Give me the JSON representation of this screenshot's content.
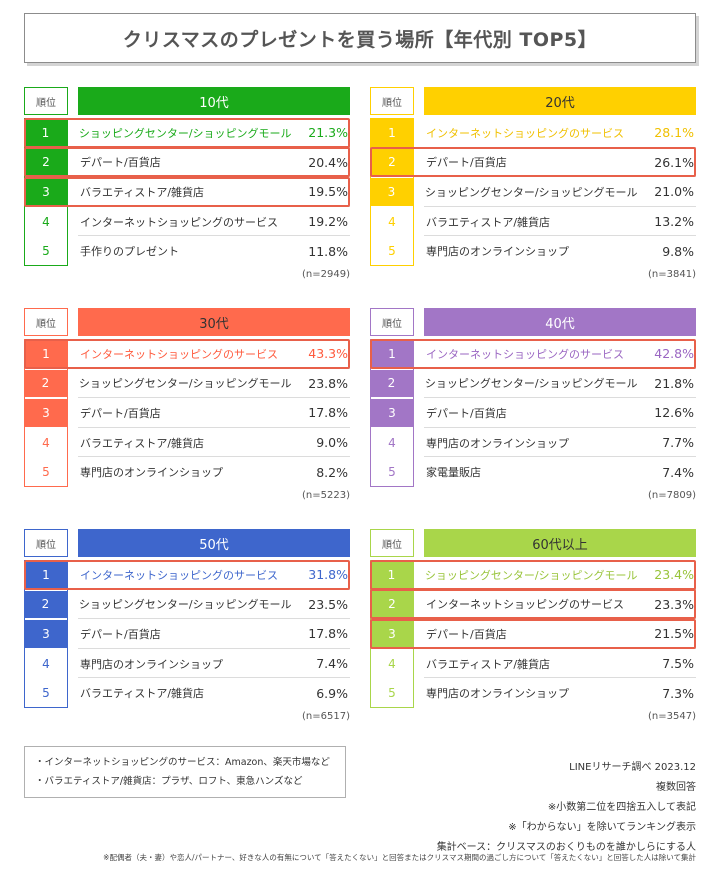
{
  "title": "クリスマスのプレゼントを買う場所【年代別 TOP5】",
  "rank_header": "順位",
  "chart_data": [
    {
      "type": "table",
      "age": "10代",
      "color": "#1aaa1a",
      "text_color": "#1aaa1a",
      "header_text_color": "#ffffff",
      "n": "(n=2949)",
      "highlight": [
        0,
        1,
        2
      ],
      "text_highlight": [
        0
      ],
      "rows": [
        {
          "rank": "1",
          "label": "ショッピングセンター/ショッピングモール",
          "value": "21.3%"
        },
        {
          "rank": "2",
          "label": "デパート/百貨店",
          "value": "20.4%"
        },
        {
          "rank": "3",
          "label": "バラエティストア/雑貨店",
          "value": "19.5%"
        },
        {
          "rank": "4",
          "label": "インターネットショッピングのサービス",
          "value": "19.2%"
        },
        {
          "rank": "5",
          "label": "手作りのプレゼント",
          "value": "11.8%"
        }
      ]
    },
    {
      "type": "table",
      "age": "20代",
      "color": "#ffd000",
      "text_color": "#f0c000",
      "header_text_color": "#333333",
      "n": "(n=3841)",
      "highlight": [
        1
      ],
      "text_highlight": [
        0
      ],
      "rows": [
        {
          "rank": "1",
          "label": "インターネットショッピングのサービス",
          "value": "28.1%"
        },
        {
          "rank": "2",
          "label": "デパート/百貨店",
          "value": "26.1%"
        },
        {
          "rank": "3",
          "label": "ショッピングセンター/ショッピングモール",
          "value": "21.0%"
        },
        {
          "rank": "4",
          "label": "バラエティストア/雑貨店",
          "value": "13.2%"
        },
        {
          "rank": "5",
          "label": "専門店のオンラインショップ",
          "value": "9.8%"
        }
      ]
    },
    {
      "type": "table",
      "age": "30代",
      "color": "#ff6a4d",
      "text_color": "#ff5a3d",
      "header_text_color": "#333333",
      "n": "(n=5223)",
      "highlight": [
        0
      ],
      "text_highlight": [
        0
      ],
      "rows": [
        {
          "rank": "1",
          "label": "インターネットショッピングのサービス",
          "value": "43.3%"
        },
        {
          "rank": "2",
          "label": "ショッピングセンター/ショッピングモール",
          "value": "23.8%"
        },
        {
          "rank": "3",
          "label": "デパート/百貨店",
          "value": "17.8%"
        },
        {
          "rank": "4",
          "label": "バラエティストア/雑貨店",
          "value": "9.0%"
        },
        {
          "rank": "5",
          "label": "専門店のオンラインショップ",
          "value": "8.2%"
        }
      ]
    },
    {
      "type": "table",
      "age": "40代",
      "color": "#a276c6",
      "text_color": "#9a66c2",
      "header_text_color": "#ffffff",
      "n": "(n=7809)",
      "highlight": [
        0
      ],
      "text_highlight": [
        0
      ],
      "rows": [
        {
          "rank": "1",
          "label": "インターネットショッピングのサービス",
          "value": "42.8%"
        },
        {
          "rank": "2",
          "label": "ショッピングセンター/ショッピングモール",
          "value": "21.8%"
        },
        {
          "rank": "3",
          "label": "デパート/百貨店",
          "value": "12.6%"
        },
        {
          "rank": "4",
          "label": "専門店のオンラインショップ",
          "value": "7.7%"
        },
        {
          "rank": "5",
          "label": "家電量販店",
          "value": "7.4%"
        }
      ]
    },
    {
      "type": "table",
      "age": "50代",
      "color": "#3e66cc",
      "text_color": "#3e66cc",
      "header_text_color": "#ffffff",
      "n": "(n=6517)",
      "highlight": [
        0
      ],
      "text_highlight": [
        0
      ],
      "rows": [
        {
          "rank": "1",
          "label": "インターネットショッピングのサービス",
          "value": "31.8%"
        },
        {
          "rank": "2",
          "label": "ショッピングセンター/ショッピングモール",
          "value": "23.5%"
        },
        {
          "rank": "3",
          "label": "デパート/百貨店",
          "value": "17.8%"
        },
        {
          "rank": "4",
          "label": "専門店のオンラインショップ",
          "value": "7.4%"
        },
        {
          "rank": "5",
          "label": "バラエティストア/雑貨店",
          "value": "6.9%"
        }
      ]
    },
    {
      "type": "table",
      "age": "60代以上",
      "color": "#a9d64a",
      "text_color": "#98c43a",
      "header_text_color": "#333333",
      "n": "(n=3547)",
      "highlight": [
        0,
        1,
        2
      ],
      "text_highlight": [
        0
      ],
      "rows": [
        {
          "rank": "1",
          "label": "ショッピングセンター/ショッピングモール",
          "value": "23.4%"
        },
        {
          "rank": "2",
          "label": "インターネットショッピングのサービス",
          "value": "23.3%"
        },
        {
          "rank": "3",
          "label": "デパート/百貨店",
          "value": "21.5%"
        },
        {
          "rank": "4",
          "label": "バラエティストア/雑貨店",
          "value": "7.5%"
        },
        {
          "rank": "5",
          "label": "専門店のオンラインショップ",
          "value": "7.3%"
        }
      ]
    }
  ],
  "footnote_left": [
    "・インターネットショッピングのサービス：Amazon、楽天市場など",
    "・バラエティストア/雑貨店：プラザ、ロフト、東急ハンズなど"
  ],
  "footnote_right": [
    "LINEリサーチ調べ 2023.12",
    "複数回答",
    "※小数第二位を四捨五入して表記",
    "※「わからない」を除いてランキング表示",
    "集計ベース：クリスマスのおくりものを誰かしらにする人"
  ],
  "footnote_bottom": "※配偶者（夫・妻）や恋人/パートナー、好きな人の有無について「答えたくない」と回答またはクリスマス期間の過ごし方について「答えたくない」と回答した人は除いて集計"
}
